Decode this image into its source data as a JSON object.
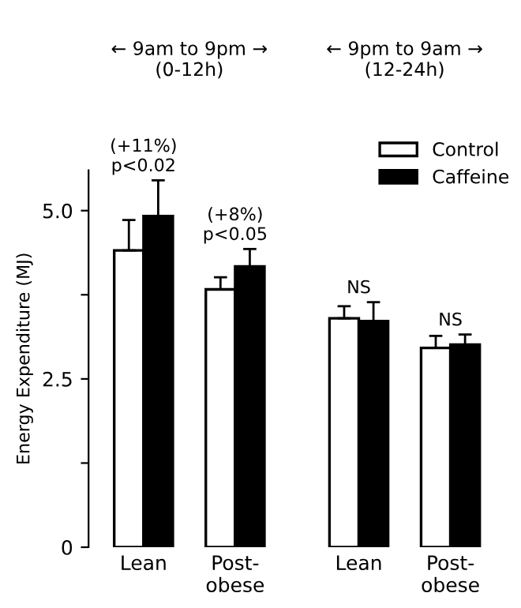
{
  "chart_data": {
    "type": "bar",
    "ylabel": "Energy Expenditure (MJ)",
    "categories": [
      "Lean",
      "Post-\nobese",
      "Lean",
      "Post-\nobese"
    ],
    "series": [
      {
        "name": "Control",
        "color": "#ffffff",
        "values": [
          4.41,
          3.83,
          3.4,
          2.96
        ],
        "errors": [
          0.45,
          0.18,
          0.18,
          0.18
        ]
      },
      {
        "name": "Caffeine",
        "color": "#000000",
        "values": [
          4.92,
          4.17,
          3.36,
          3.01
        ],
        "errors": [
          0.53,
          0.26,
          0.28,
          0.15
        ]
      }
    ],
    "ylim": [
      0,
      5.6
    ],
    "yticks": [
      0,
      {
        "value": 1.25,
        "label": null
      },
      2.5,
      {
        "value": 3.75,
        "label": null
      },
      {
        "value": 5.0,
        "label": "5.0"
      }
    ],
    "annotations": [
      "← 9am to 9pm →\n(0-12h)",
      "← 9pm to 9am →\n(12-24h)",
      "(+11%)\np<0.02",
      "(+8%)\np<0.05",
      "NS",
      "NS"
    ],
    "legend": "top right",
    "grid": false
  }
}
